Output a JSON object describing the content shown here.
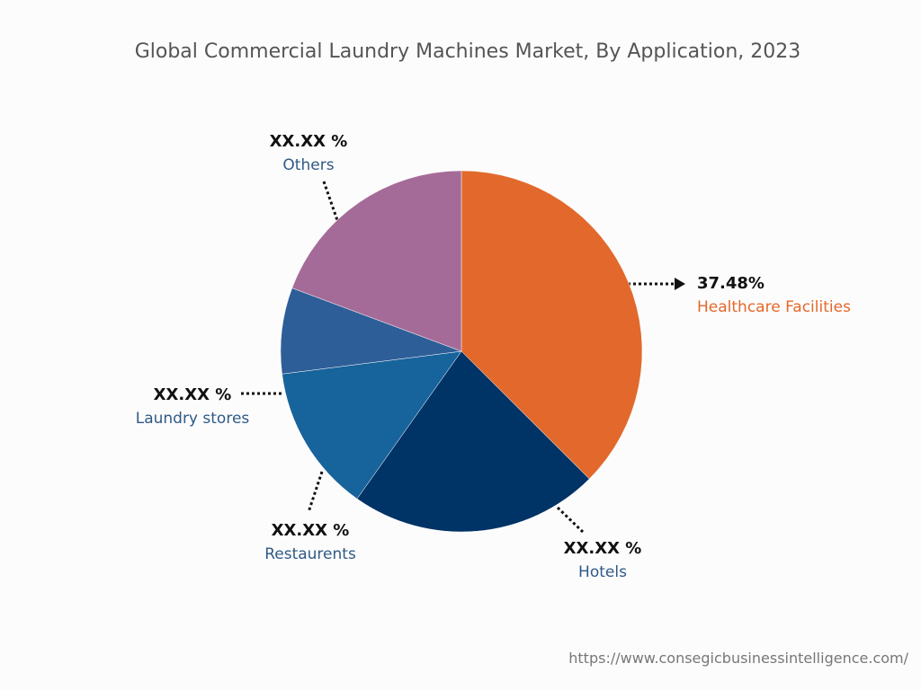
{
  "chart_data": {
    "type": "pie",
    "title": "Global Commercial Laundry Machines Market, By Application, 2023",
    "categories": [
      "Healthcare Facilities",
      "Hotels",
      "Restaurents",
      "Laundry stores",
      "Others"
    ],
    "values": [
      37.48,
      22.3,
      13.2,
      7.7,
      19.3
    ],
    "value_labels": [
      "37.48%",
      "XX.XX %",
      "XX.XX %",
      "XX.XX %",
      "XX.XX %"
    ],
    "colors": [
      "#e2692b",
      "#003366",
      "#17639c",
      "#2e5e98",
      "#a56b98"
    ],
    "source": "https://www.consegicbusinessintelligence.com/"
  }
}
